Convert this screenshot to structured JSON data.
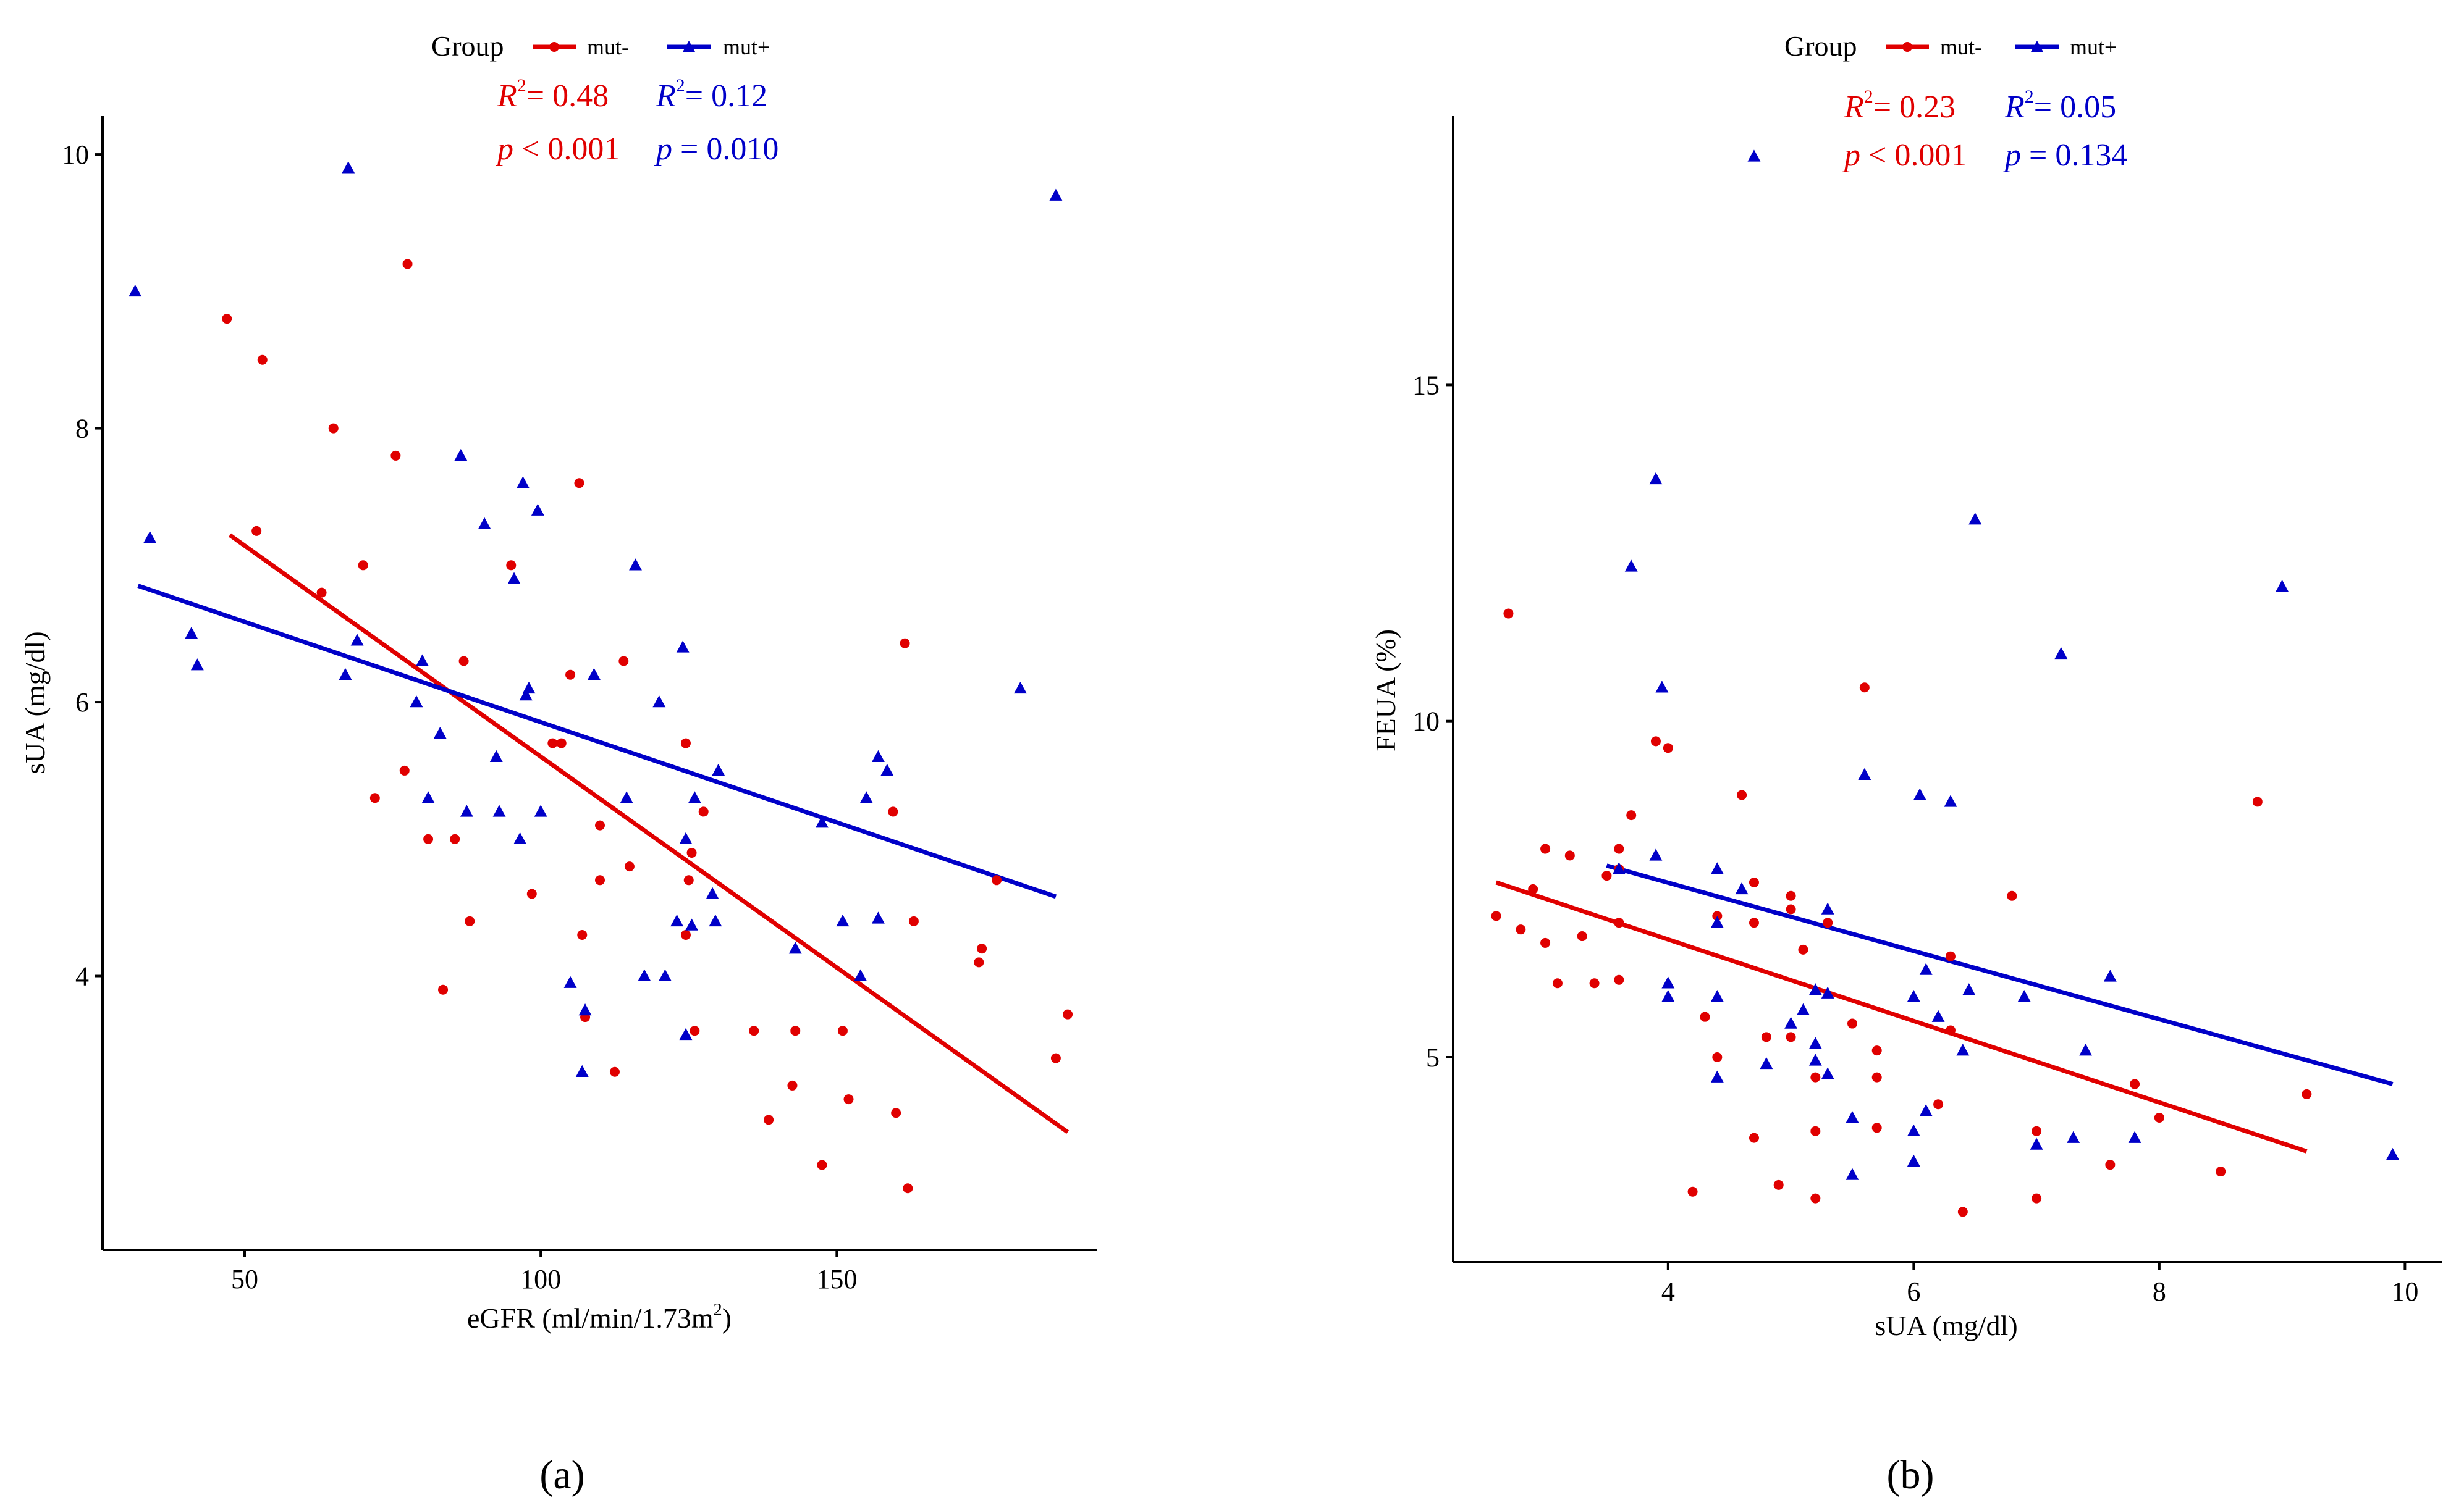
{
  "panels": [
    {
      "chart_data": {
        "type": "scatter",
        "panel_label": "(a)",
        "xlabel_prefix": "eGFR (ml/min/1.73m",
        "xlabel_sup": "2",
        "xlabel_suffix": ")",
        "ylabel": "sUA (mg/dl)",
        "xlim": [
          26,
          194
        ],
        "ylim": [
          2.0,
          10.28
        ],
        "xticks": [
          50,
          100,
          150
        ],
        "yticks": [
          4,
          6,
          8,
          10
        ],
        "legend": {
          "title": "Group",
          "position": "top",
          "entries": [
            {
              "label": "mut-",
              "color": "#e00000",
              "marker": "circle"
            },
            {
              "label": "mut+",
              "color": "#0000c8",
              "marker": "triangle"
            }
          ]
        },
        "annotations": [
          {
            "r2_label": "R",
            "r2_sup": "2",
            "r2_value": "= 0.48",
            "p_label": "p",
            "p_value": " < 0.001",
            "color": "#e00000"
          },
          {
            "r2_label": "R",
            "r2_sup": "2",
            "r2_value": "= 0.12",
            "p_label": "p",
            "p_value": " = 0.010",
            "color": "#0000c8"
          }
        ],
        "series": [
          {
            "name": "mut-",
            "color": "#e00000",
            "marker": "circle",
            "fit_line": [
              [
                47.5,
                7.22
              ],
              [
                189,
                2.86
              ]
            ],
            "points": [
              [
                47,
                8.8
              ],
              [
                53,
                8.5
              ],
              [
                52,
                7.25
              ],
              [
                63,
                6.8
              ],
              [
                65,
                8.0
              ],
              [
                70,
                7.0
              ],
              [
                72,
                5.3
              ],
              [
                75.5,
                7.8
              ],
              [
                77,
                5.5
              ],
              [
                77.5,
                9.2
              ],
              [
                81,
                5.0
              ],
              [
                83.5,
                3.9
              ],
              [
                85.5,
                5.0
              ],
              [
                87,
                6.3
              ],
              [
                88,
                4.4
              ],
              [
                95,
                7.0
              ],
              [
                98.5,
                4.6
              ],
              [
                102,
                5.7
              ],
              [
                103.5,
                5.7
              ],
              [
                105,
                6.2
              ],
              [
                106.5,
                7.6
              ],
              [
                107,
                4.3
              ],
              [
                107.5,
                3.7
              ],
              [
                110,
                5.1
              ],
              [
                110,
                4.7
              ],
              [
                112.5,
                3.3
              ],
              [
                114,
                6.3
              ],
              [
                115,
                4.8
              ],
              [
                124.5,
                5.7
              ],
              [
                124.5,
                4.3
              ],
              [
                125,
                4.7
              ],
              [
                125.5,
                4.9
              ],
              [
                126,
                3.6
              ],
              [
                127.5,
                5.2
              ],
              [
                136,
                3.6
              ],
              [
                138.5,
                2.95
              ],
              [
                142.5,
                3.2
              ],
              [
                143,
                3.6
              ],
              [
                147.5,
                2.62
              ],
              [
                151,
                3.6
              ],
              [
                152,
                3.1
              ],
              [
                159.5,
                5.2
              ],
              [
                160,
                3.0
              ],
              [
                161.5,
                6.43
              ],
              [
                162,
                2.45
              ],
              [
                163,
                4.4
              ],
              [
                174,
                4.1
              ],
              [
                174.5,
                4.2
              ],
              [
                177,
                4.7
              ],
              [
                187,
                3.4
              ],
              [
                189,
                3.72
              ]
            ]
          },
          {
            "name": "mut+",
            "color": "#0000c8",
            "marker": "triangle",
            "fit_line": [
              [
                32,
                6.85
              ],
              [
                187,
                4.58
              ]
            ],
            "points": [
              [
                31.5,
                9.0
              ],
              [
                34,
                7.2
              ],
              [
                41,
                6.5
              ],
              [
                42,
                6.27
              ],
              [
                67,
                6.2
              ],
              [
                67.5,
                9.9
              ],
              [
                69,
                6.45
              ],
              [
                79,
                6.0
              ],
              [
                80,
                6.3
              ],
              [
                81,
                5.3
              ],
              [
                83,
                5.77
              ],
              [
                86.5,
                7.8
              ],
              [
                87.5,
                5.2
              ],
              [
                90.5,
                7.3
              ],
              [
                92.5,
                5.6
              ],
              [
                93,
                5.2
              ],
              [
                95.5,
                6.9
              ],
              [
                96.5,
                5.0
              ],
              [
                97,
                7.6
              ],
              [
                97.5,
                6.05
              ],
              [
                98,
                6.1
              ],
              [
                99.5,
                7.4
              ],
              [
                100,
                5.2
              ],
              [
                105,
                3.95
              ],
              [
                107,
                3.3
              ],
              [
                107.5,
                3.75
              ],
              [
                109,
                6.2
              ],
              [
                114.5,
                5.3
              ],
              [
                116,
                7.0
              ],
              [
                117.5,
                4.0
              ],
              [
                120,
                6.0
              ],
              [
                121,
                4.0
              ],
              [
                123,
                4.4
              ],
              [
                124,
                6.4
              ],
              [
                124.5,
                5.0
              ],
              [
                124.5,
                3.57
              ],
              [
                125.5,
                4.37
              ],
              [
                126,
                5.3
              ],
              [
                129,
                4.6
              ],
              [
                129.5,
                4.4
              ],
              [
                130,
                5.5
              ],
              [
                143,
                4.2
              ],
              [
                147.5,
                5.12
              ],
              [
                151,
                4.4
              ],
              [
                154,
                4.0
              ],
              [
                155,
                5.3
              ],
              [
                157,
                5.6
              ],
              [
                157,
                4.42
              ],
              [
                158.5,
                5.5
              ],
              [
                181,
                6.1
              ],
              [
                187,
                9.7
              ]
            ]
          }
        ]
      }
    },
    {
      "chart_data": {
        "type": "scatter",
        "panel_label": "(b)",
        "xlabel_prefix": "sUA (mg/dl)",
        "xlabel_sup": "",
        "xlabel_suffix": "",
        "ylabel": "FEUA (%)",
        "xlim": [
          2.25,
          10.3
        ],
        "ylim": [
          1.95,
          19.0
        ],
        "xticks": [
          4,
          6,
          8,
          10
        ],
        "yticks": [
          5,
          10,
          15
        ],
        "legend": {
          "title": "Group",
          "position": "top",
          "entries": [
            {
              "label": "mut-",
              "color": "#e00000",
              "marker": "circle"
            },
            {
              "label": "mut+",
              "color": "#0000c8",
              "marker": "triangle"
            }
          ]
        },
        "annotations": [
          {
            "r2_label": "R",
            "r2_sup": "2",
            "r2_value": "= 0.23",
            "p_label": "p",
            "p_value": " < 0.001",
            "color": "#e00000"
          },
          {
            "r2_label": "R",
            "r2_sup": "2",
            "r2_value": "= 0.05",
            "p_label": "p",
            "p_value": " = 0.134",
            "color": "#0000c8"
          }
        ],
        "series": [
          {
            "name": "mut-",
            "color": "#e00000",
            "marker": "circle",
            "fit_line": [
              [
                2.6,
                7.6
              ],
              [
                9.2,
                3.6
              ]
            ],
            "points": [
              [
                2.6,
                7.1
              ],
              [
                2.7,
                11.6
              ],
              [
                2.8,
                6.9
              ],
              [
                2.9,
                7.5
              ],
              [
                3.0,
                8.1
              ],
              [
                3.0,
                6.7
              ],
              [
                3.1,
                6.1
              ],
              [
                3.2,
                8.0
              ],
              [
                3.3,
                6.8
              ],
              [
                3.4,
                6.1
              ],
              [
                3.5,
                7.7
              ],
              [
                3.6,
                8.1
              ],
              [
                3.6,
                7.8
              ],
              [
                3.6,
                7.0
              ],
              [
                3.6,
                6.15
              ],
              [
                3.7,
                8.6
              ],
              [
                3.9,
                9.7
              ],
              [
                4.0,
                9.6
              ],
              [
                4.2,
                3.0
              ],
              [
                4.3,
                5.6
              ],
              [
                4.4,
                7.1
              ],
              [
                4.4,
                5.0
              ],
              [
                4.6,
                8.9
              ],
              [
                4.7,
                7.6
              ],
              [
                4.7,
                7.0
              ],
              [
                4.7,
                3.8
              ],
              [
                4.8,
                5.3
              ],
              [
                4.9,
                3.1
              ],
              [
                5.0,
                7.4
              ],
              [
                5.0,
                7.2
              ],
              [
                5.0,
                5.3
              ],
              [
                5.1,
                6.6
              ],
              [
                5.2,
                4.7
              ],
              [
                5.2,
                3.9
              ],
              [
                5.2,
                2.9
              ],
              [
                5.3,
                7.0
              ],
              [
                5.5,
                5.5
              ],
              [
                5.6,
                10.5
              ],
              [
                5.7,
                5.1
              ],
              [
                5.7,
                4.7
              ],
              [
                5.7,
                3.95
              ],
              [
                6.2,
                4.3
              ],
              [
                6.3,
                6.5
              ],
              [
                6.3,
                5.4
              ],
              [
                6.4,
                2.7
              ],
              [
                6.8,
                7.4
              ],
              [
                7.0,
                3.9
              ],
              [
                7.0,
                2.9
              ],
              [
                7.6,
                3.4
              ],
              [
                7.8,
                4.6
              ],
              [
                8.0,
                4.1
              ],
              [
                8.5,
                3.3
              ],
              [
                8.8,
                8.8
              ],
              [
                9.2,
                4.45
              ]
            ]
          },
          {
            "name": "mut+",
            "color": "#0000c8",
            "marker": "triangle",
            "fit_line": [
              [
                3.5,
                7.85
              ],
              [
                9.9,
                4.6
              ]
            ],
            "points": [
              [
                3.6,
                7.8
              ],
              [
                3.7,
                12.3
              ],
              [
                3.9,
                13.6
              ],
              [
                3.9,
                8.0
              ],
              [
                3.95,
                10.5
              ],
              [
                4.0,
                6.1
              ],
              [
                4.0,
                5.9
              ],
              [
                4.4,
                7.8
              ],
              [
                4.4,
                7.0
              ],
              [
                4.4,
                5.9
              ],
              [
                4.4,
                4.7
              ],
              [
                4.6,
                7.5
              ],
              [
                4.7,
                18.4
              ],
              [
                4.8,
                4.9
              ],
              [
                5.0,
                5.5
              ],
              [
                5.1,
                5.7
              ],
              [
                5.2,
                6.0
              ],
              [
                5.2,
                5.2
              ],
              [
                5.2,
                4.95
              ],
              [
                5.3,
                7.2
              ],
              [
                5.3,
                5.95
              ],
              [
                5.3,
                4.75
              ],
              [
                5.5,
                4.1
              ],
              [
                5.5,
                3.25
              ],
              [
                5.6,
                9.2
              ],
              [
                6.0,
                5.9
              ],
              [
                6.0,
                3.9
              ],
              [
                6.0,
                3.45
              ],
              [
                6.05,
                8.9
              ],
              [
                6.1,
                6.3
              ],
              [
                6.1,
                4.2
              ],
              [
                6.2,
                5.6
              ],
              [
                6.3,
                8.8
              ],
              [
                6.4,
                5.1
              ],
              [
                6.45,
                6.0
              ],
              [
                6.5,
                13.0
              ],
              [
                6.9,
                5.9
              ],
              [
                7.0,
                3.7
              ],
              [
                7.2,
                11.0
              ],
              [
                7.3,
                3.8
              ],
              [
                7.4,
                5.1
              ],
              [
                7.6,
                6.2
              ],
              [
                7.8,
                3.8
              ],
              [
                9.0,
                12.0
              ],
              [
                9.9,
                3.55
              ]
            ]
          }
        ]
      }
    }
  ]
}
